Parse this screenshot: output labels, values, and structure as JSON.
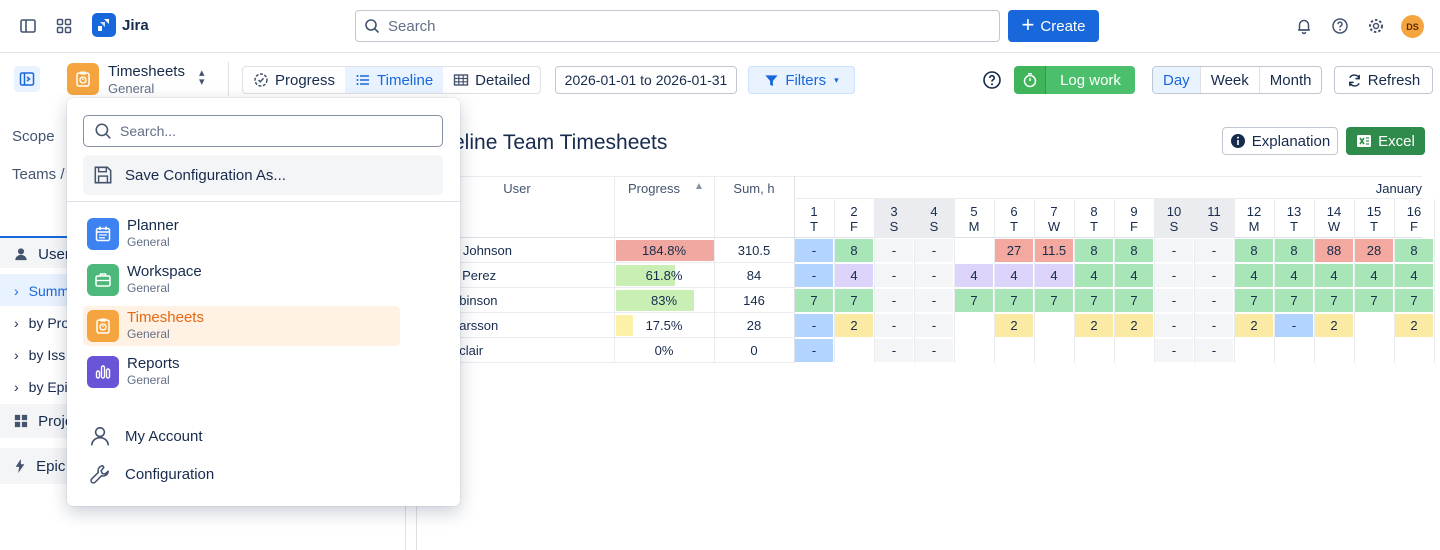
{
  "topnav": {
    "product": "Jira",
    "search_placeholder": "Search",
    "create_label": "Create",
    "avatar_initials": "DS"
  },
  "toolbar": {
    "app_name": "Timesheets",
    "app_sub": "General",
    "views": [
      "Progress",
      "Timeline",
      "Detailed"
    ],
    "active_view": "Timeline",
    "date_range": "2026-01-01 to 2026-01-31",
    "filters_label": "Filters",
    "log_work_label": "Log work",
    "periods": [
      "Day",
      "Week",
      "Month"
    ],
    "active_period": "Day",
    "refresh_label": "Refresh"
  },
  "leftpanel": {
    "scope_label": "Scope",
    "teams_label": "Teams /",
    "nav": [
      "User",
      "Summ",
      "by Pro",
      "by Iss",
      "by Epi",
      "Proje",
      "Epic t"
    ]
  },
  "main": {
    "title": "eline Team Timesheets",
    "explanation_label": "Explanation",
    "excel_label": "Excel",
    "headers": {
      "user": "User",
      "progress": "Progress",
      "sum": "Sum, h",
      "month": "January"
    }
  },
  "days": [
    {
      "d": "1",
      "w": "T",
      "weekend": false
    },
    {
      "d": "2",
      "w": "F",
      "weekend": false
    },
    {
      "d": "3",
      "w": "S",
      "weekend": true
    },
    {
      "d": "4",
      "w": "S",
      "weekend": true
    },
    {
      "d": "5",
      "w": "M",
      "weekend": false
    },
    {
      "d": "6",
      "w": "T",
      "weekend": false
    },
    {
      "d": "7",
      "w": "W",
      "weekend": false
    },
    {
      "d": "8",
      "w": "T",
      "weekend": false
    },
    {
      "d": "9",
      "w": "F",
      "weekend": false
    },
    {
      "d": "10",
      "w": "S",
      "weekend": true
    },
    {
      "d": "11",
      "w": "S",
      "weekend": true
    },
    {
      "d": "12",
      "w": "M",
      "weekend": false
    },
    {
      "d": "13",
      "w": "T",
      "weekend": false
    },
    {
      "d": "14",
      "w": "W",
      "weekend": false
    },
    {
      "d": "15",
      "w": "T",
      "weekend": false
    },
    {
      "d": "16",
      "w": "F",
      "weekend": false
    }
  ],
  "rows": [
    {
      "user": "n Johnson",
      "progress": "184.8%",
      "fill": 1.0,
      "bar_color": "#f0a8a0",
      "sum": "310.5",
      "cells": [
        [
          "-",
          "b"
        ],
        [
          "8",
          "g"
        ],
        [
          "-",
          "w"
        ],
        [
          "-",
          "w"
        ],
        [
          "",
          ""
        ],
        [
          "27",
          "r"
        ],
        [
          "11.5",
          "r"
        ],
        [
          "8",
          "g"
        ],
        [
          "8",
          "g"
        ],
        [
          "-",
          "w"
        ],
        [
          "-",
          "w"
        ],
        [
          "8",
          "g"
        ],
        [
          "8",
          "g"
        ],
        [
          "88",
          "r"
        ],
        [
          "28",
          "r"
        ],
        [
          "8",
          "g"
        ]
      ]
    },
    {
      "user": "s Perez",
      "progress": "61.8%",
      "fill": 0.6,
      "bar_color": "#c9efb5",
      "sum": "84",
      "cells": [
        [
          "-",
          "b"
        ],
        [
          "4",
          "p"
        ],
        [
          "-",
          "w"
        ],
        [
          "-",
          "w"
        ],
        [
          "4",
          "p"
        ],
        [
          "4",
          "p"
        ],
        [
          "4",
          "p"
        ],
        [
          "4",
          "g"
        ],
        [
          "4",
          "g"
        ],
        [
          "-",
          "w"
        ],
        [
          "-",
          "w"
        ],
        [
          "4",
          "g"
        ],
        [
          "4",
          "g"
        ],
        [
          "4",
          "g"
        ],
        [
          "4",
          "g"
        ],
        [
          "4",
          "g"
        ]
      ]
    },
    {
      "user": "obinson",
      "progress": "83%",
      "fill": 0.8,
      "bar_color": "#c9efb5",
      "sum": "146",
      "cells": [
        [
          "7",
          "g"
        ],
        [
          "7",
          "g"
        ],
        [
          "-",
          "w"
        ],
        [
          "-",
          "w"
        ],
        [
          "7",
          "g"
        ],
        [
          "7",
          "g"
        ],
        [
          "7",
          "g"
        ],
        [
          "7",
          "g"
        ],
        [
          "7",
          "g"
        ],
        [
          "-",
          "w"
        ],
        [
          "-",
          "w"
        ],
        [
          "7",
          "g"
        ],
        [
          "7",
          "g"
        ],
        [
          "7",
          "g"
        ],
        [
          "7",
          "g"
        ],
        [
          "7",
          "g"
        ]
      ]
    },
    {
      "user": " Larsson",
      "progress": "17.5%",
      "fill": 0.17,
      "bar_color": "#fdf0a8",
      "sum": "28",
      "cells": [
        [
          "-",
          "b"
        ],
        [
          "2",
          "y"
        ],
        [
          "-",
          "w"
        ],
        [
          "-",
          "w"
        ],
        [
          "",
          ""
        ],
        [
          "2",
          "y"
        ],
        [
          "",
          ""
        ],
        [
          "2",
          "y"
        ],
        [
          "2",
          "y"
        ],
        [
          "-",
          "w"
        ],
        [
          "-",
          "w"
        ],
        [
          "2",
          "y"
        ],
        [
          "-",
          "b"
        ],
        [
          "2",
          "y"
        ],
        [
          "",
          ""
        ],
        [
          "2",
          "y"
        ]
      ]
    },
    {
      "user": "nclair",
      "progress": "0%",
      "fill": 0,
      "bar_color": "#ffffff",
      "sum": "0",
      "cells": [
        [
          "-",
          "b"
        ],
        [
          "",
          ""
        ],
        [
          "-",
          "w"
        ],
        [
          "-",
          "w"
        ],
        [
          "",
          ""
        ],
        [
          "",
          ""
        ],
        [
          "",
          ""
        ],
        [
          "",
          ""
        ],
        [
          "",
          ""
        ],
        [
          "-",
          "w"
        ],
        [
          "-",
          "w"
        ],
        [
          "",
          ""
        ],
        [
          "",
          ""
        ],
        [
          "",
          ""
        ],
        [
          "",
          ""
        ],
        [
          "",
          ""
        ]
      ]
    }
  ],
  "cell_colors": {
    "b": "#b3d4ff",
    "g": "#a8e6b8",
    "r": "#f4a9a0",
    "p": "#dcd4fb",
    "y": "#fbeaa3",
    "w": "#f4f5f7",
    "": "#ffffff"
  },
  "dropdown": {
    "search_placeholder": "Search...",
    "save_label": "Save Configuration As...",
    "apps": [
      {
        "name": "Planner",
        "sub": "General",
        "color": "#3c82f0"
      },
      {
        "name": "Workspace",
        "sub": "General",
        "color": "#4cb87a"
      },
      {
        "name": "Timesheets",
        "sub": "General",
        "color": "#f5a53f"
      },
      {
        "name": "Reports",
        "sub": "General",
        "color": "#6754d6"
      }
    ],
    "account_label": "My Account",
    "config_label": "Configuration"
  }
}
